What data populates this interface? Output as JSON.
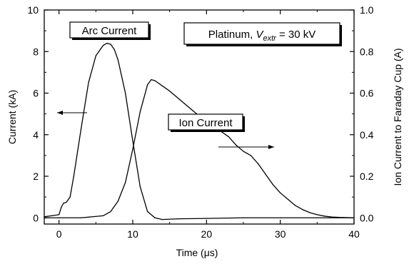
{
  "chart_data": {
    "type": "line",
    "xlabel": "Time (μs)",
    "ylabel": "Current (kA)",
    "y2label": "Ion Current to Faraday Cup (A)",
    "xlim": [
      -2,
      40
    ],
    "ylim": [
      -0.3,
      10
    ],
    "y2lim": [
      -0.03,
      1.0
    ],
    "xticks": [
      "0",
      "10",
      "20",
      "30",
      "40"
    ],
    "yticks": [
      "0",
      "2",
      "4",
      "6",
      "8",
      "10"
    ],
    "y2ticks": [
      "0.0",
      "0.2",
      "0.4",
      "0.6",
      "0.8",
      "1.0"
    ],
    "grid": false,
    "annotations": {
      "arc_label": "Arc Current",
      "ion_label": "Ion Current",
      "info_prefix": "Platinum, ",
      "info_var": "V",
      "info_sub": "extr",
      "info_suffix": " = 30 kV"
    },
    "series": [
      {
        "axis": "left",
        "x": [
          -2,
          -1,
          0,
          0.3,
          0.6,
          1,
          1.5,
          2,
          3,
          4,
          5,
          6,
          6.5,
          7,
          7.5,
          8,
          9,
          10,
          11,
          12,
          13,
          14,
          16,
          20,
          25,
          30,
          35,
          40
        ],
        "y": [
          0.05,
          0.1,
          0.15,
          0.5,
          0.7,
          0.75,
          1.0,
          2.0,
          4.3,
          6.5,
          7.8,
          8.3,
          8.4,
          8.35,
          8.1,
          7.6,
          6.0,
          3.7,
          1.5,
          0.3,
          0.0,
          -0.08,
          -0.05,
          -0.03,
          0.0,
          0.0,
          0.0,
          0.0
        ]
      },
      {
        "axis": "right",
        "x": [
          -2,
          0,
          3,
          6,
          7,
          8,
          9,
          10,
          11,
          12,
          12.5,
          13,
          14,
          15,
          17,
          19,
          21,
          23,
          24,
          25,
          26,
          27,
          28,
          29,
          30,
          31,
          32,
          33,
          34,
          35,
          36,
          37,
          38,
          40
        ],
        "y": [
          0.0,
          0.0,
          0.0,
          0.01,
          0.03,
          0.08,
          0.17,
          0.33,
          0.51,
          0.64,
          0.665,
          0.66,
          0.635,
          0.61,
          0.55,
          0.49,
          0.44,
          0.39,
          0.35,
          0.32,
          0.3,
          0.26,
          0.21,
          0.16,
          0.12,
          0.09,
          0.06,
          0.04,
          0.025,
          0.015,
          0.008,
          0.004,
          0.002,
          0.0
        ]
      }
    ]
  }
}
